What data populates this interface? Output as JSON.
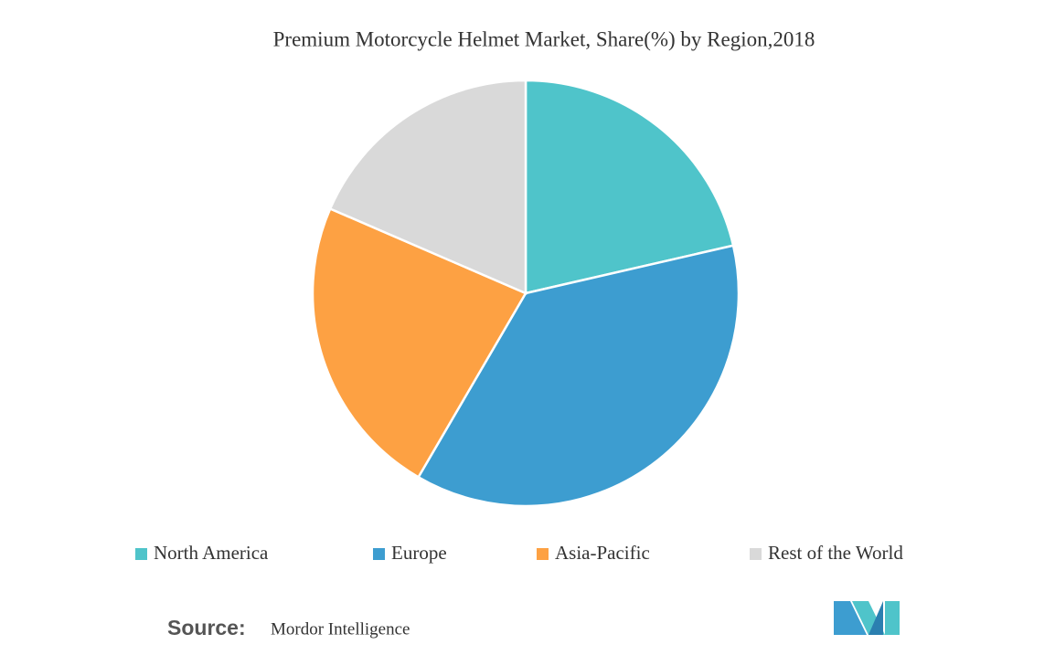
{
  "chart_data": {
    "type": "pie",
    "title": "Premium Motorcycle Helmet Market, Share(%) by Region,2018",
    "categories": [
      "North America",
      "Europe",
      "Asia-Pacific",
      "Rest of the World"
    ],
    "values": [
      21.4,
      37,
      23.1,
      18.5
    ],
    "colors": [
      "#4fc4ca",
      "#3d9dd0",
      "#fda143",
      "#d9d9d9"
    ],
    "legend": "bottom",
    "source_label": "Source:",
    "source": "Mordor Intelligence"
  }
}
